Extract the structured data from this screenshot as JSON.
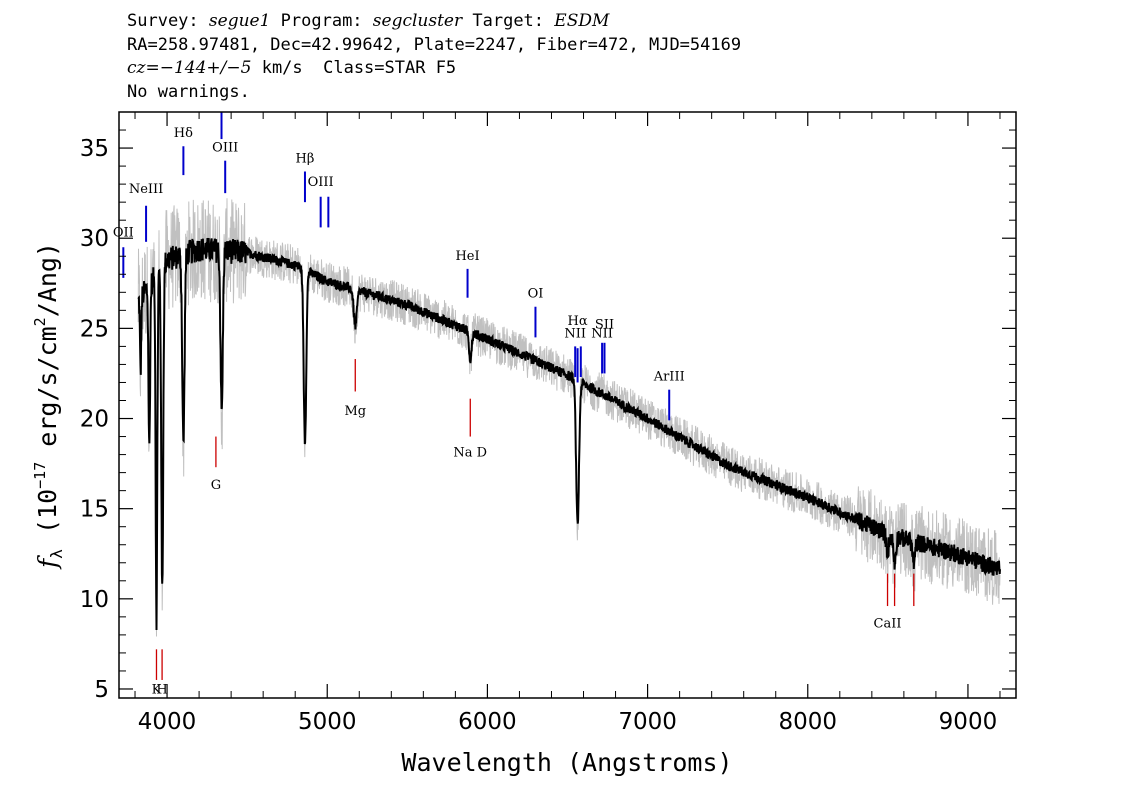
{
  "header": {
    "survey_label": "Survey:",
    "survey": "segue1",
    "program_label": "Program:",
    "program": "segcluster",
    "target_label": "Target:",
    "target": "ESDM",
    "coords": "RA=258.97481, Dec=42.99642, Plate=2247, Fiber=472, MJD=54169",
    "cz_label": "cz=",
    "cz_value": "−144+/−5",
    "cz_units": " km/s  Class=STAR F5",
    "warnings": "No warnings."
  },
  "chart_data": {
    "type": "line",
    "xlabel": "Wavelength (Angstroms)",
    "ylabel_main": "f",
    "ylabel_sub": "λ",
    "ylabel_units": " (10",
    "ylabel_exp": "−17",
    "ylabel_rest": " erg/s/cm",
    "ylabel_exp2": "2",
    "ylabel_end": "/Ang)",
    "xlim": [
      3700,
      9300
    ],
    "ylim": [
      4.5,
      37
    ],
    "xticks": [
      4000,
      5000,
      6000,
      7000,
      8000,
      9000
    ],
    "yticks": [
      5,
      10,
      15,
      20,
      25,
      30,
      35
    ],
    "grid": false,
    "colors": {
      "smoothed": "#000000",
      "raw": "#c0c0c0",
      "emission": "#0000cc",
      "absorption": "#cc0000"
    },
    "continuum": [
      [
        3820,
        26.5
      ],
      [
        4000,
        28.8
      ],
      [
        4200,
        29.4
      ],
      [
        4500,
        29.2
      ],
      [
        4800,
        28.5
      ],
      [
        5000,
        27.6
      ],
      [
        5500,
        26.3
      ],
      [
        6000,
        24.4
      ],
      [
        6500,
        22.4
      ],
      [
        7000,
        20.0
      ],
      [
        7500,
        17.4
      ],
      [
        8000,
        15.6
      ],
      [
        8500,
        13.6
      ],
      [
        9000,
        12.3
      ],
      [
        9200,
        11.6
      ]
    ],
    "absorption_features": [
      {
        "x": 3835,
        "depth": 4.0,
        "width": 4
      },
      {
        "x": 3889,
        "depth": 9.0,
        "width": 5
      },
      {
        "x": 3934,
        "depth": 19.0,
        "width": 5
      },
      {
        "x": 3970,
        "depth": 18.0,
        "width": 6
      },
      {
        "x": 4102,
        "depth": 10.5,
        "width": 7
      },
      {
        "x": 4341,
        "depth": 9.0,
        "width": 7
      },
      {
        "x": 4861,
        "depth": 9.5,
        "width": 8
      },
      {
        "x": 5175,
        "depth": 2.0,
        "width": 10
      },
      {
        "x": 5893,
        "depth": 1.5,
        "width": 8
      },
      {
        "x": 6563,
        "depth": 8.0,
        "width": 9
      },
      {
        "x": 8498,
        "depth": 1.0,
        "width": 8
      },
      {
        "x": 8542,
        "depth": 1.5,
        "width": 8
      },
      {
        "x": 8662,
        "depth": 1.2,
        "width": 8
      }
    ],
    "emission_lines": [
      {
        "label": "OII",
        "x": 3727,
        "y0": 27.8,
        "y1": 29.5,
        "label_y": 30.1
      },
      {
        "label": "NeIII",
        "x": 3869,
        "y0": 29.8,
        "y1": 31.8,
        "label_y": 32.5
      },
      {
        "label": "Hδ",
        "x": 4102,
        "y0": 33.5,
        "y1": 35.1,
        "label_y": 35.6
      },
      {
        "label": "",
        "x": 4340,
        "y0": 35.5,
        "y1": 37.0,
        "label_y": 37
      },
      {
        "label": "OIII",
        "x": 4363,
        "y0": 32.5,
        "y1": 34.3,
        "label_y": 34.8
      },
      {
        "label": "Hβ",
        "x": 4861,
        "y0": 32.0,
        "y1": 33.7,
        "label_y": 34.2
      },
      {
        "label": "OIII",
        "x": 4959,
        "y0": 30.6,
        "y1": 32.3,
        "label_y": 32.9
      },
      {
        "label": "",
        "x": 5007,
        "y0": 30.6,
        "y1": 32.3,
        "label_y": 32.9
      },
      {
        "label": "HeI",
        "x": 5876,
        "y0": 26.7,
        "y1": 28.3,
        "label_y": 28.8
      },
      {
        "label": "OI",
        "x": 6300,
        "y0": 24.5,
        "y1": 26.2,
        "label_y": 26.7
      },
      {
        "label": "NII",
        "x": 6548,
        "y0": 22.3,
        "y1": 24.0,
        "label_y": 24.5
      },
      {
        "label": "Hα",
        "x": 6563,
        "y0": 22.0,
        "y1": 23.9,
        "label_y": 25.2
      },
      {
        "label": "",
        "x": 6583,
        "y0": 22.3,
        "y1": 24.0,
        "label_y": 24.5
      },
      {
        "label": "NII",
        "x": 6716,
        "y0": 22.5,
        "y1": 24.2,
        "label_y": 24.5
      },
      {
        "label": "SII",
        "x": 6731,
        "y0": 22.5,
        "y1": 24.2,
        "label_y": 25.0
      },
      {
        "label": "ArIII",
        "x": 7135,
        "y0": 19.9,
        "y1": 21.6,
        "label_y": 22.1
      }
    ],
    "absorption_lines": [
      {
        "label": "K",
        "x": 3934,
        "y0": 5.5,
        "y1": 7.2,
        "label_y": 4.75
      },
      {
        "label": "H",
        "x": 3969,
        "y0": 5.5,
        "y1": 7.2,
        "label_y": 4.75
      },
      {
        "label": "G",
        "x": 4305,
        "y0": 17.3,
        "y1": 19.0,
        "label_y": 16.1
      },
      {
        "label": "Mg",
        "x": 5175,
        "y0": 21.5,
        "y1": 23.3,
        "label_y": 20.2
      },
      {
        "label": "Na D",
        "x": 5893,
        "y0": 19.0,
        "y1": 21.1,
        "label_y": 17.9
      },
      {
        "label": "CaII",
        "x": 8498,
        "y0": 9.6,
        "y1": 11.4,
        "label_y": 8.4
      },
      {
        "label": "",
        "x": 8542,
        "y0": 9.6,
        "y1": 11.4,
        "label_y": 8.4
      },
      {
        "label": "",
        "x": 8662,
        "y0": 9.6,
        "y1": 11.4,
        "label_y": 8.4
      }
    ]
  }
}
